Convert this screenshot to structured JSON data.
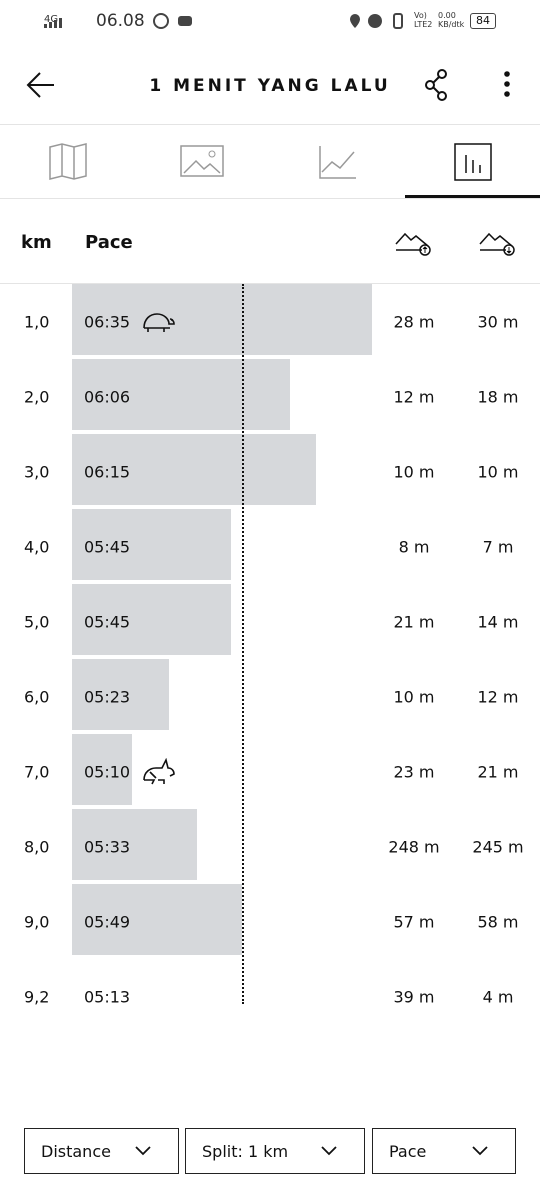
{
  "status_bar": {
    "network": "4G",
    "time": "06.08",
    "lte": "Vo) LTE2",
    "speed": "0.00 KB/dtk",
    "battery": "84"
  },
  "header": {
    "title": "1 MENIT YANG LALU"
  },
  "table": {
    "columns": [
      "km",
      "Pace"
    ],
    "rows": [
      [
        "1,0",
        "06:35",
        "28 m",
        "30 m"
      ],
      [
        "2,0",
        "06:06",
        "12 m",
        "18 m"
      ],
      [
        "3,0",
        "06:15",
        "10 m",
        "10 m"
      ],
      [
        "4,0",
        "05:45",
        "8 m",
        "7 m"
      ],
      [
        "5,0",
        "05:45",
        "21 m",
        "14 m"
      ],
      [
        "6,0",
        "05:23",
        "10 m",
        "12 m"
      ],
      [
        "7,0",
        "05:10",
        "23 m",
        "21 m"
      ],
      [
        "8,0",
        "05:33",
        "248 m",
        "245 m"
      ],
      [
        "9,0",
        "05:49",
        "57 m",
        "58 m"
      ],
      [
        "9,2",
        "05:13",
        "39 m",
        "4 m"
      ]
    ]
  },
  "controls": [
    "Distance",
    "Split: 1 km",
    "Pace"
  ]
}
